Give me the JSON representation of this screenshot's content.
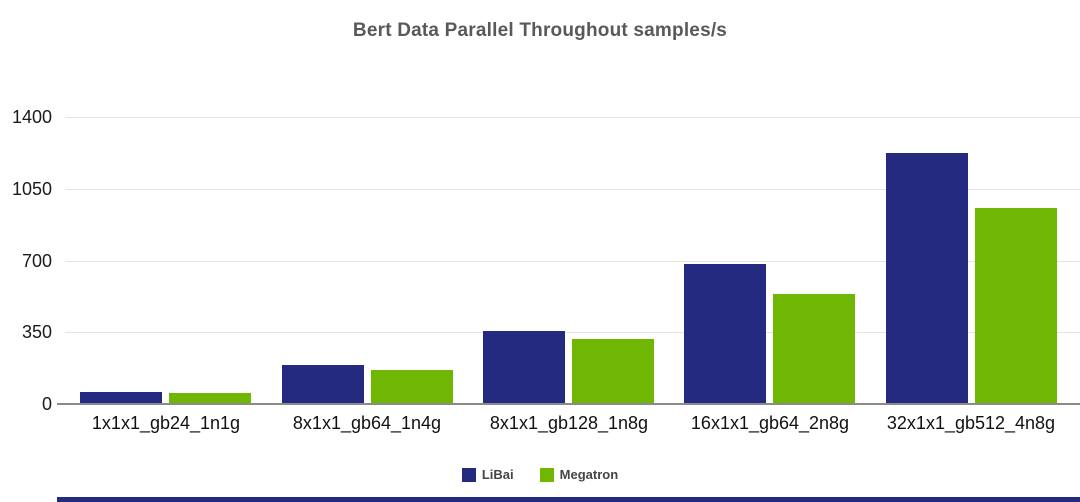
{
  "chart_data": {
    "type": "bar",
    "title": "Bert Data Parallel Throughout samples/s",
    "categories": [
      "1x1x1_gb24_1n1g",
      "8x1x1_gb64_1n4g",
      "8x1x1_gb128_1n8g",
      "16x1x1_gb64_2n8g",
      "32x1x1_gb512_4n8g"
    ],
    "series": [
      {
        "name": "LiBai",
        "color": "#242a80",
        "values": [
          53,
          184,
          350,
          678,
          1218
        ]
      },
      {
        "name": "Megatron",
        "color": "#6fb702",
        "values": [
          48,
          160,
          314,
          534,
          952
        ]
      }
    ],
    "xlabel": "",
    "ylabel": "",
    "ylim": [
      0,
      1400
    ],
    "yticks": [
      0,
      350,
      700,
      1050,
      1400
    ],
    "grid": true,
    "legend_position": "bottom"
  },
  "colors": {
    "grid": "#e5e5e5",
    "axis": "#8a8a8a",
    "title_text": "#595959",
    "tick_text": "#1a1a1a",
    "category_text": "#111111",
    "legend_text": "#454545",
    "background": "#ffffff"
  }
}
